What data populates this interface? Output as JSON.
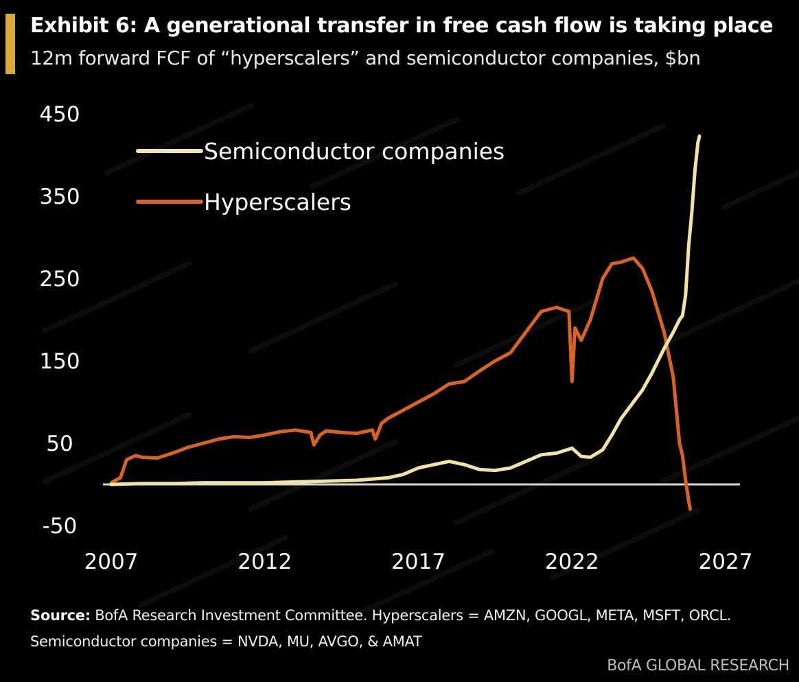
{
  "title": "Exhibit 6: A generational transfer in free cash flow is taking place",
  "subtitle": "12m forward FCF of “hyperscalers” and semiconductor companies, $bn",
  "source_label": "Source:",
  "source_text": "BofA Research Investment Committee. Hyperscalers = AMZN, GOOGL, META, MSFT, ORCL.",
  "source_text_2": "Semiconductor companies = NVDA, MU, AVGO, & AMAT",
  "branding": "BofA GLOBAL RESEARCH",
  "colors": {
    "accent": "#d9a93a",
    "semiconductor": "#f3e3a2",
    "hyperscalers": "#d8641f",
    "zero_line": "#d6d6d6"
  },
  "chart_data": {
    "type": "line",
    "title": "",
    "xlabel": "",
    "ylabel": "",
    "xlim": [
      2007,
      2027
    ],
    "ylim": [
      -50,
      450
    ],
    "x_ticks": [
      2007,
      2012,
      2017,
      2022,
      2027
    ],
    "x_tick_labels": [
      "2007",
      "2012",
      "2017",
      "2022",
      "2027"
    ],
    "y_ticks": [
      -50,
      50,
      150,
      250,
      350,
      450
    ],
    "y_tick_labels": [
      "-50",
      "50",
      "150",
      "250",
      "350",
      "450"
    ],
    "grid": false,
    "legend_position": "top-left",
    "series": [
      {
        "name": "Semiconductor companies",
        "points": [
          [
            2007.0,
            0
          ],
          [
            2008.0,
            1
          ],
          [
            2009.0,
            1
          ],
          [
            2010.0,
            2
          ],
          [
            2011.0,
            2
          ],
          [
            2012.0,
            2
          ],
          [
            2013.0,
            3
          ],
          [
            2014.0,
            4
          ],
          [
            2015.0,
            5
          ],
          [
            2016.0,
            8
          ],
          [
            2016.5,
            12
          ],
          [
            2017.0,
            20
          ],
          [
            2017.5,
            24
          ],
          [
            2018.0,
            28
          ],
          [
            2018.5,
            24
          ],
          [
            2019.0,
            18
          ],
          [
            2019.5,
            17
          ],
          [
            2020.0,
            20
          ],
          [
            2020.5,
            28
          ],
          [
            2021.0,
            36
          ],
          [
            2021.5,
            38
          ],
          [
            2022.0,
            44
          ],
          [
            2022.3,
            34
          ],
          [
            2022.6,
            33
          ],
          [
            2023.0,
            42
          ],
          [
            2023.3,
            60
          ],
          [
            2023.6,
            80
          ],
          [
            2024.0,
            100
          ],
          [
            2024.3,
            115
          ],
          [
            2024.6,
            135
          ],
          [
            2025.0,
            165
          ],
          [
            2025.3,
            185
          ],
          [
            2025.5,
            200
          ],
          [
            2025.6,
            205
          ],
          [
            2025.7,
            230
          ],
          [
            2025.8,
            290
          ],
          [
            2025.9,
            330
          ],
          [
            2026.0,
            380
          ],
          [
            2026.1,
            415
          ],
          [
            2026.15,
            423
          ]
        ]
      },
      {
        "name": "Hyperscalers",
        "points": [
          [
            2007.0,
            2
          ],
          [
            2007.3,
            8
          ],
          [
            2007.5,
            30
          ],
          [
            2007.8,
            35
          ],
          [
            2008.0,
            33
          ],
          [
            2008.5,
            32
          ],
          [
            2009.0,
            38
          ],
          [
            2009.5,
            45
          ],
          [
            2010.0,
            50
          ],
          [
            2010.5,
            55
          ],
          [
            2011.0,
            58
          ],
          [
            2011.5,
            57
          ],
          [
            2012.0,
            60
          ],
          [
            2012.5,
            64
          ],
          [
            2013.0,
            66
          ],
          [
            2013.5,
            63
          ],
          [
            2013.6,
            48
          ],
          [
            2013.8,
            60
          ],
          [
            2014.0,
            65
          ],
          [
            2014.5,
            63
          ],
          [
            2015.0,
            62
          ],
          [
            2015.5,
            66
          ],
          [
            2015.6,
            55
          ],
          [
            2015.8,
            74
          ],
          [
            2016.0,
            80
          ],
          [
            2016.5,
            90
          ],
          [
            2017.0,
            100
          ],
          [
            2017.5,
            110
          ],
          [
            2018.0,
            122
          ],
          [
            2018.5,
            125
          ],
          [
            2019.0,
            138
          ],
          [
            2019.5,
            150
          ],
          [
            2020.0,
            160
          ],
          [
            2020.5,
            185
          ],
          [
            2021.0,
            210
          ],
          [
            2021.5,
            215
          ],
          [
            2021.9,
            210
          ],
          [
            2022.0,
            125
          ],
          [
            2022.1,
            190
          ],
          [
            2022.3,
            175
          ],
          [
            2022.6,
            200
          ],
          [
            2023.0,
            250
          ],
          [
            2023.3,
            268
          ],
          [
            2023.6,
            270
          ],
          [
            2024.0,
            275
          ],
          [
            2024.3,
            262
          ],
          [
            2024.6,
            235
          ],
          [
            2025.0,
            185
          ],
          [
            2025.3,
            130
          ],
          [
            2025.5,
            50
          ],
          [
            2025.6,
            35
          ],
          [
            2025.7,
            5
          ],
          [
            2025.8,
            -20
          ],
          [
            2025.85,
            -30
          ]
        ]
      }
    ]
  }
}
